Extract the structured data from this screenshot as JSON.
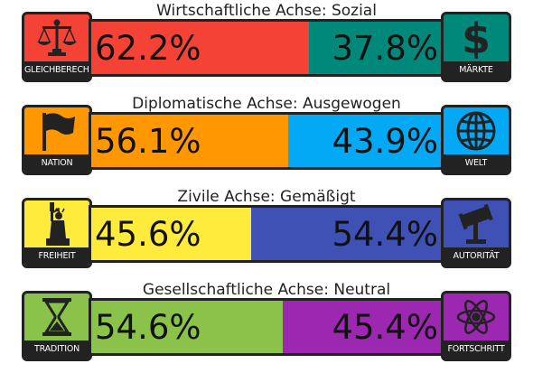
{
  "axes": [
    {
      "title": "Wirtschaftliche Achse: Sozial",
      "left": {
        "label": "GLEICHBERECHTIGUNG",
        "percent": "62.2%",
        "value": 62.2,
        "color": "#f44336",
        "badge_color": "#f44336",
        "icon": "scales-icon"
      },
      "right": {
        "label": "MÄRKTE",
        "percent": "37.8%",
        "value": 37.8,
        "color": "#00897b",
        "badge_color": "#00897b",
        "icon": "dollar-icon"
      }
    },
    {
      "title": "Diplomatische Achse: Ausgewogen",
      "left": {
        "label": "NATION",
        "percent": "56.1%",
        "value": 56.1,
        "color": "#ff9800",
        "badge_color": "#ff9800",
        "icon": "flag-icon"
      },
      "right": {
        "label": "WELT",
        "percent": "43.9%",
        "value": 43.9,
        "color": "#03a9f4",
        "badge_color": "#03a9f4",
        "icon": "globe-icon"
      }
    },
    {
      "title": "Zivile Achse: Gemäßigt",
      "left": {
        "label": "FREIHEIT",
        "percent": "45.6%",
        "value": 45.6,
        "color": "#ffeb3b",
        "badge_color": "#ffeb3b",
        "icon": "liberty-statue-icon"
      },
      "right": {
        "label": "AUTORITÄT",
        "percent": "54.4%",
        "value": 54.4,
        "color": "#3f51b5",
        "badge_color": "#3f51b5",
        "icon": "gavel-icon"
      }
    },
    {
      "title": "Gesellschaftliche Achse: Neutral",
      "left": {
        "label": "TRADITION",
        "percent": "54.6%",
        "value": 54.6,
        "color": "#8bc34a",
        "badge_color": "#8bc34a",
        "icon": "hourglass-icon"
      },
      "right": {
        "label": "FORTSCHRITT",
        "percent": "45.4%",
        "value": 45.4,
        "color": "#9c27b0",
        "badge_color": "#9c27b0",
        "icon": "atom-icon"
      }
    }
  ]
}
